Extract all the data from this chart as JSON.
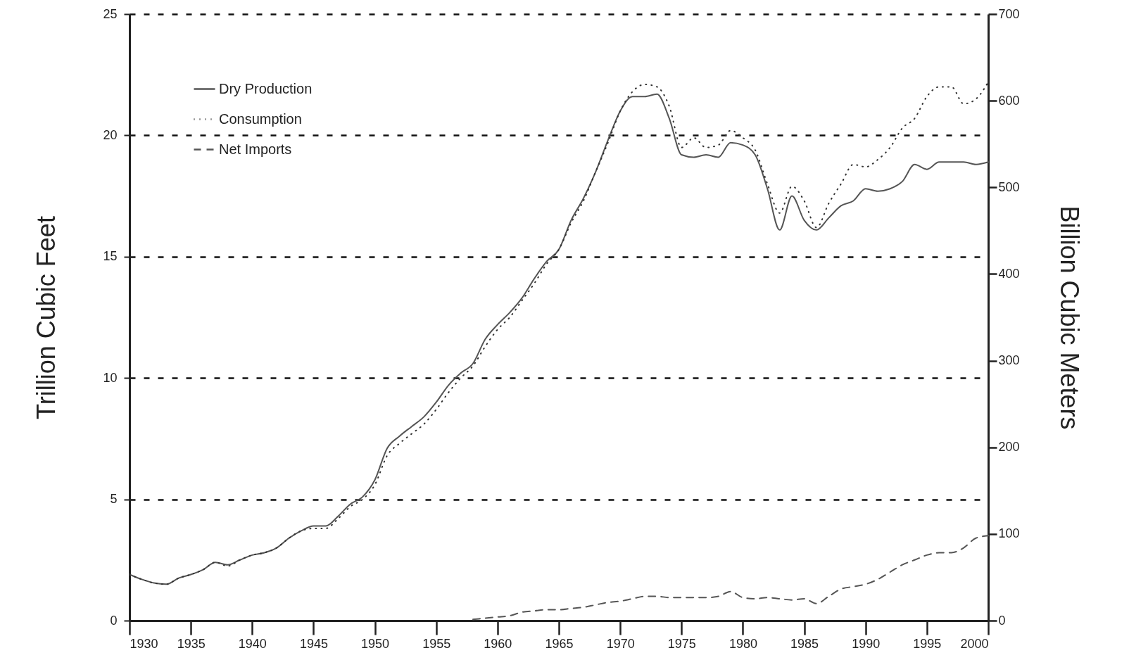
{
  "chart_data": {
    "type": "line",
    "ylabel": "Trillion Cubic Feet",
    "y2label": "Billion Cubic Meters",
    "x": [
      1930,
      1931,
      1932,
      1933,
      1934,
      1935,
      1936,
      1937,
      1938,
      1939,
      1940,
      1941,
      1942,
      1943,
      1944,
      1945,
      1946,
      1947,
      1948,
      1949,
      1950,
      1951,
      1952,
      1953,
      1954,
      1955,
      1956,
      1957,
      1958,
      1959,
      1960,
      1961,
      1962,
      1963,
      1964,
      1965,
      1966,
      1967,
      1968,
      1969,
      1970,
      1971,
      1972,
      1973,
      1974,
      1975,
      1976,
      1977,
      1978,
      1979,
      1980,
      1981,
      1982,
      1983,
      1984,
      1985,
      1986,
      1987,
      1988,
      1989,
      1990,
      1991,
      1992,
      1993,
      1994,
      1995,
      1996,
      1997,
      1998,
      1999,
      2000
    ],
    "series": [
      {
        "name": "Dry Production",
        "color": "#555555",
        "line_style": "solid",
        "values": [
          1.9,
          1.7,
          1.55,
          1.5,
          1.75,
          1.9,
          2.1,
          2.4,
          2.3,
          2.5,
          2.7,
          2.8,
          3.0,
          3.4,
          3.7,
          3.9,
          3.9,
          4.3,
          4.8,
          5.1,
          5.8,
          7.1,
          7.6,
          8.0,
          8.4,
          9.0,
          9.7,
          10.2,
          10.6,
          11.6,
          12.2,
          12.7,
          13.3,
          14.1,
          14.8,
          15.3,
          16.5,
          17.4,
          18.5,
          19.8,
          21.0,
          21.6,
          21.6,
          21.7,
          20.7,
          19.2,
          19.1,
          19.2,
          19.1,
          19.7,
          19.6,
          19.2,
          17.8,
          16.1,
          17.5,
          16.5,
          16.1,
          16.6,
          17.1,
          17.3,
          17.8,
          17.7,
          17.8,
          18.1,
          18.8,
          18.6,
          18.9,
          18.9,
          18.9,
          18.8,
          18.9
        ]
      },
      {
        "name": "Consumption",
        "color": "#333333",
        "line_style": "dotted",
        "values": [
          1.9,
          1.7,
          1.55,
          1.5,
          1.75,
          1.9,
          2.1,
          2.4,
          2.25,
          2.5,
          2.7,
          2.8,
          3.0,
          3.4,
          3.7,
          3.8,
          3.8,
          4.2,
          4.7,
          5.0,
          5.6,
          6.8,
          7.3,
          7.7,
          8.1,
          8.7,
          9.4,
          10.0,
          10.5,
          11.3,
          12.0,
          12.5,
          13.2,
          13.9,
          14.7,
          15.3,
          16.4,
          17.3,
          18.5,
          19.7,
          21.0,
          21.8,
          22.1,
          22.0,
          21.2,
          19.5,
          19.9,
          19.5,
          19.6,
          20.2,
          19.9,
          19.4,
          18.0,
          16.8,
          17.9,
          17.3,
          16.2,
          17.2,
          18.0,
          18.8,
          18.7,
          19.0,
          19.5,
          20.3,
          20.7,
          21.6,
          22.0,
          22.0,
          21.3,
          21.5,
          22.2
        ]
      },
      {
        "name": "Net Imports",
        "color": "#555555",
        "line_style": "dashed",
        "values": [
          null,
          null,
          null,
          null,
          null,
          null,
          null,
          null,
          null,
          null,
          null,
          null,
          null,
          null,
          null,
          null,
          null,
          null,
          null,
          null,
          null,
          null,
          null,
          null,
          null,
          null,
          null,
          null,
          0.05,
          0.1,
          0.15,
          0.2,
          0.35,
          0.4,
          0.45,
          0.45,
          0.5,
          0.55,
          0.65,
          0.75,
          0.8,
          0.9,
          1.0,
          1.0,
          0.95,
          0.95,
          0.95,
          0.95,
          1.0,
          1.2,
          0.95,
          0.9,
          0.95,
          0.9,
          0.85,
          0.9,
          0.7,
          1.0,
          1.3,
          1.4,
          1.5,
          1.7,
          2.0,
          2.3,
          2.5,
          2.7,
          2.8,
          2.8,
          3.0,
          3.4,
          3.5
        ]
      }
    ],
    "xlim": [
      1930,
      2000
    ],
    "xticks": [
      1930,
      1935,
      1940,
      1945,
      1950,
      1955,
      1960,
      1965,
      1970,
      1975,
      1980,
      1985,
      1990,
      1995,
      2000
    ],
    "ylim": [
      0,
      25
    ],
    "yticks": [
      0,
      5,
      10,
      15,
      20,
      25
    ],
    "y2lim": [
      0,
      700
    ],
    "y2ticks": [
      0,
      100,
      200,
      300,
      400,
      500,
      600,
      700
    ],
    "grid": "y",
    "legend": "top left"
  }
}
